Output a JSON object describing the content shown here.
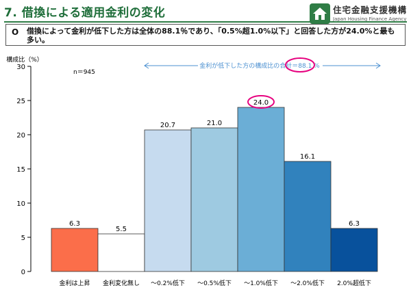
{
  "header": {
    "title": "7. 借換による適用金利の変化",
    "logo_jp": "住宅金融支援機構",
    "logo_en": "Japan Housing Finance Agency"
  },
  "summary": {
    "bullet": "O",
    "text": "借換によって金利が低下した方は全体の88.1％であり、「0.5%超1.0%以下」と回答した方が24.0%と最も多い。"
  },
  "chart_data": {
    "type": "bar",
    "ylabel": "構成比（%）",
    "ylim": [
      0,
      30
    ],
    "yticks": [
      0,
      5,
      10,
      15,
      20,
      25,
      30
    ],
    "n_label": "n＝945",
    "bracket_label": "金利が低下した方の構成比の合計＝88.1 %",
    "bracket_value": 88.1,
    "highlight_index": 4,
    "categories": [
      "金利は上昇",
      "金利変化無し",
      "～0.2%低下",
      "～0.5%低下",
      "～1.0%低下",
      "～2.0%低下",
      "2.0%超低下"
    ],
    "values": [
      6.3,
      5.5,
      20.7,
      21.0,
      24.0,
      16.1,
      6.3
    ],
    "value_labels": [
      "6.3",
      "5.5",
      "20.7",
      "21.0",
      "24.0",
      "16.1",
      "6.3"
    ],
    "colors": [
      "#fb6e4a",
      "#ffffff",
      "#c6dbef",
      "#9ecae1",
      "#6baed6",
      "#3182bd",
      "#08519c"
    ],
    "bracket_color": "#4a8fd0",
    "highlight_color": "#e6007e"
  }
}
